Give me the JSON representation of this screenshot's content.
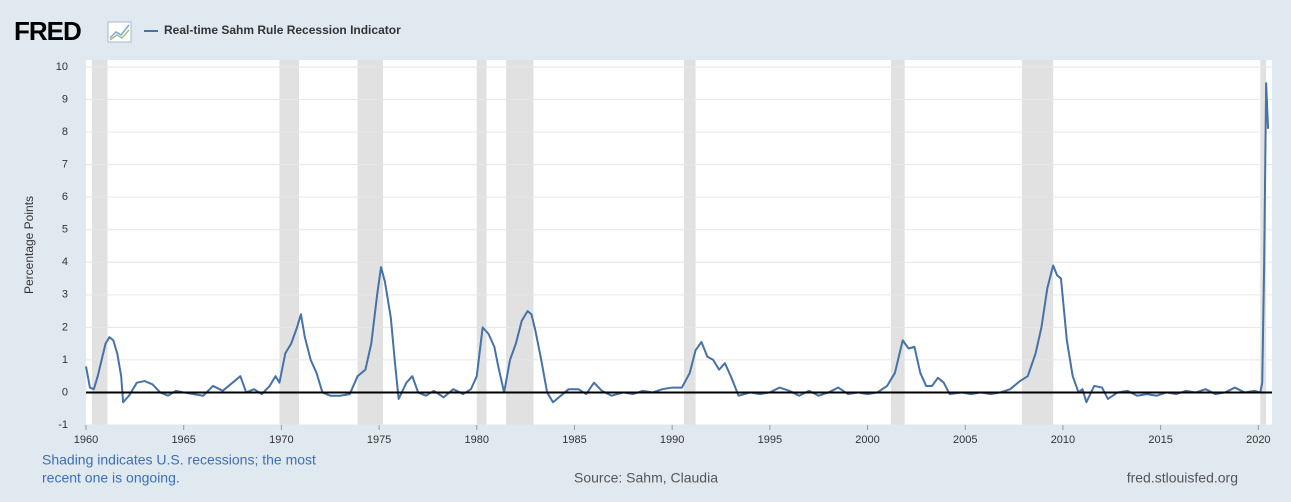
{
  "brand": "FRED",
  "chart_data": {
    "type": "line",
    "ylabel": "Percentage Points",
    "x": [
      1960.0,
      1960.2,
      1960.4,
      1960.6,
      1960.8,
      1961.0,
      1961.2,
      1961.4,
      1961.6,
      1961.8,
      1961.9,
      1962.2,
      1962.6,
      1963.0,
      1963.4,
      1963.8,
      1964.2,
      1964.6,
      1965.0,
      1965.5,
      1966.0,
      1966.5,
      1967.0,
      1967.5,
      1967.9,
      1968.2,
      1968.6,
      1969.0,
      1969.4,
      1969.7,
      1969.9,
      1970.2,
      1970.5,
      1970.8,
      1971.0,
      1971.2,
      1971.5,
      1971.8,
      1972.1,
      1972.5,
      1973.0,
      1973.5,
      1973.9,
      1974.3,
      1974.6,
      1974.9,
      1975.1,
      1975.3,
      1975.6,
      1975.8,
      1976.0,
      1976.4,
      1976.7,
      1977.0,
      1977.4,
      1977.8,
      1978.3,
      1978.8,
      1979.3,
      1979.7,
      1980.0,
      1980.3,
      1980.6,
      1980.9,
      1981.1,
      1981.4,
      1981.7,
      1982.0,
      1982.3,
      1982.6,
      1982.8,
      1983.0,
      1983.3,
      1983.6,
      1983.9,
      1984.3,
      1984.7,
      1985.2,
      1985.6,
      1986.0,
      1986.4,
      1986.9,
      1987.5,
      1988.0,
      1988.5,
      1989.0,
      1989.5,
      1990.0,
      1990.5,
      1990.9,
      1991.2,
      1991.5,
      1991.8,
      1992.1,
      1992.4,
      1992.7,
      1993.0,
      1993.4,
      1994.0,
      1994.5,
      1995.0,
      1995.5,
      1996.0,
      1996.5,
      1997.0,
      1997.5,
      1998.0,
      1998.5,
      1999.0,
      1999.5,
      2000.0,
      2000.5,
      2001.0,
      2001.4,
      2001.8,
      2002.1,
      2002.4,
      2002.7,
      2003.0,
      2003.3,
      2003.6,
      2003.9,
      2004.2,
      2004.8,
      2005.3,
      2005.8,
      2006.3,
      2006.8,
      2007.3,
      2007.8,
      2008.2,
      2008.6,
      2008.9,
      2009.2,
      2009.5,
      2009.7,
      2009.9,
      2010.2,
      2010.5,
      2010.8,
      2011.0,
      2011.2,
      2011.6,
      2012.0,
      2012.3,
      2012.8,
      2013.3,
      2013.8,
      2014.3,
      2014.8,
      2015.3,
      2015.8,
      2016.3,
      2016.8,
      2017.3,
      2017.8,
      2018.3,
      2018.8,
      2019.3,
      2019.8,
      2020.1,
      2020.2,
      2020.3,
      2020.4,
      2020.5
    ],
    "series": [
      {
        "name": "Real-time Sahm Rule Recession Indicator",
        "color": "#4572a7",
        "values": [
          0.8,
          0.15,
          0.1,
          0.5,
          1.0,
          1.5,
          1.7,
          1.6,
          1.2,
          0.5,
          -0.3,
          -0.1,
          0.3,
          0.35,
          0.25,
          0.0,
          -0.1,
          0.05,
          0.0,
          -0.05,
          -0.1,
          0.2,
          0.05,
          0.3,
          0.5,
          0.0,
          0.1,
          -0.05,
          0.2,
          0.5,
          0.3,
          1.2,
          1.5,
          2.0,
          2.4,
          1.7,
          1.0,
          0.6,
          0.0,
          -0.1,
          -0.1,
          -0.05,
          0.5,
          0.7,
          1.5,
          3.0,
          3.85,
          3.4,
          2.3,
          1.0,
          -0.2,
          0.3,
          0.5,
          0.0,
          -0.1,
          0.05,
          -0.15,
          0.1,
          -0.05,
          0.1,
          0.5,
          2.0,
          1.8,
          1.4,
          0.8,
          0.0,
          1.0,
          1.5,
          2.2,
          2.5,
          2.4,
          1.9,
          1.0,
          0.0,
          -0.3,
          -0.1,
          0.1,
          0.1,
          -0.05,
          0.3,
          0.05,
          -0.1,
          0.0,
          -0.05,
          0.05,
          0.0,
          0.1,
          0.15,
          0.15,
          0.6,
          1.3,
          1.55,
          1.1,
          1.0,
          0.7,
          0.9,
          0.5,
          -0.1,
          0.0,
          -0.05,
          0.0,
          0.15,
          0.05,
          -0.1,
          0.05,
          -0.1,
          0.0,
          0.15,
          -0.05,
          0.0,
          -0.05,
          0.0,
          0.2,
          0.6,
          1.6,
          1.35,
          1.4,
          0.6,
          0.2,
          0.2,
          0.45,
          0.3,
          -0.05,
          0.0,
          -0.05,
          0.0,
          -0.05,
          0.0,
          0.1,
          0.35,
          0.5,
          1.2,
          2.0,
          3.2,
          3.9,
          3.6,
          3.5,
          1.6,
          0.5,
          0.0,
          0.1,
          -0.3,
          0.2,
          0.15,
          -0.2,
          0.0,
          0.05,
          -0.1,
          -0.05,
          -0.1,
          0.0,
          -0.05,
          0.05,
          0.0,
          0.1,
          -0.05,
          0.0,
          0.15,
          0.0,
          0.05,
          0.0,
          0.3,
          4.0,
          9.5,
          8.1
        ]
      }
    ],
    "recessions": [
      [
        1960.3,
        1961.1
      ],
      [
        1969.9,
        1970.9
      ],
      [
        1973.9,
        1975.2
      ],
      [
        1980.0,
        1980.5
      ],
      [
        1981.5,
        1982.9
      ],
      [
        1990.6,
        1991.2
      ],
      [
        2001.2,
        2001.9
      ],
      [
        2007.9,
        2009.5
      ],
      [
        2020.1,
        2020.4
      ]
    ],
    "recession_color": "#e1e1e1",
    "xlim": [
      1960,
      2020.7
    ],
    "xticks": [
      1960,
      1965,
      1970,
      1975,
      1980,
      1985,
      1990,
      1995,
      2000,
      2005,
      2010,
      2015,
      2020
    ],
    "ylim": [
      -1,
      10
    ],
    "yticks": [
      -1,
      0,
      1,
      2,
      3,
      4,
      5,
      6,
      7,
      8,
      9,
      10
    ],
    "grid": true
  },
  "note": [
    "Shading indicates U.S. recessions; the most",
    "recent one is ongoing."
  ],
  "source": "Source: Sahm, Claudia",
  "site": "fred.stlouisfed.org"
}
